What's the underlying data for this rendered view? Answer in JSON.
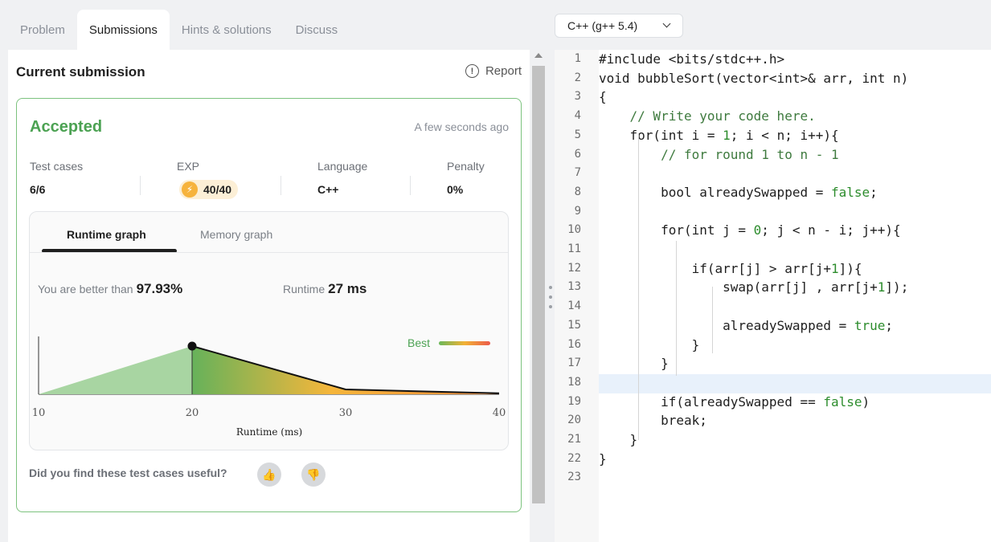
{
  "tabs": [
    "Problem",
    "Submissions",
    "Hints & solutions",
    "Discuss"
  ],
  "active_tab": "Submissions",
  "current_submission": {
    "title": "Current submission",
    "report_label": "Report",
    "status": "Accepted",
    "time_ago": "A few seconds ago",
    "stats": {
      "test_cases_label": "Test cases",
      "test_cases_value": "6/6",
      "exp_label": "EXP",
      "exp_value": "40/40",
      "language_label": "Language",
      "language_value": "C++",
      "penalty_label": "Penalty",
      "penalty_value": "0%"
    },
    "graph_tabs": [
      "Runtime graph",
      "Memory graph"
    ],
    "better_than_label": "You are better than",
    "better_than_value": "97.93%",
    "runtime_label": "Runtime",
    "runtime_value": "27 ms",
    "feedback_question": "Did you find these test cases useful?"
  },
  "chart_data": {
    "type": "area",
    "xlabel": "Runtime (ms)",
    "x_ticks": [
      10,
      20,
      30,
      40
    ],
    "xlim": [
      10,
      40
    ],
    "legend": "Best",
    "marker": {
      "x": 20
    },
    "series": [
      {
        "x": [
          10,
          20,
          30,
          40
        ],
        "values": [
          0,
          1.0,
          0.1,
          0
        ]
      }
    ]
  },
  "editor": {
    "language_select": "C++ (g++ 5.4)",
    "lines": [
      "#include <bits/stdc++.h>",
      "void bubbleSort(vector<int>& arr, int n)",
      "{",
      "    // Write your code here.",
      "    for(int i = 1; i < n; i++){",
      "        // for round 1 to n - 1",
      "",
      "        bool alreadySwapped = false;",
      "",
      "        for(int j = 0; j < n - i; j++){",
      "",
      "            if(arr[j] > arr[j+1]){",
      "                swap(arr[j] , arr[j+1]);",
      "",
      "                alreadySwapped = true;",
      "            }",
      "        }",
      "",
      "        if(alreadySwapped == false)",
      "        break;",
      "    }",
      "}",
      ""
    ],
    "highlighted_line": 18
  }
}
